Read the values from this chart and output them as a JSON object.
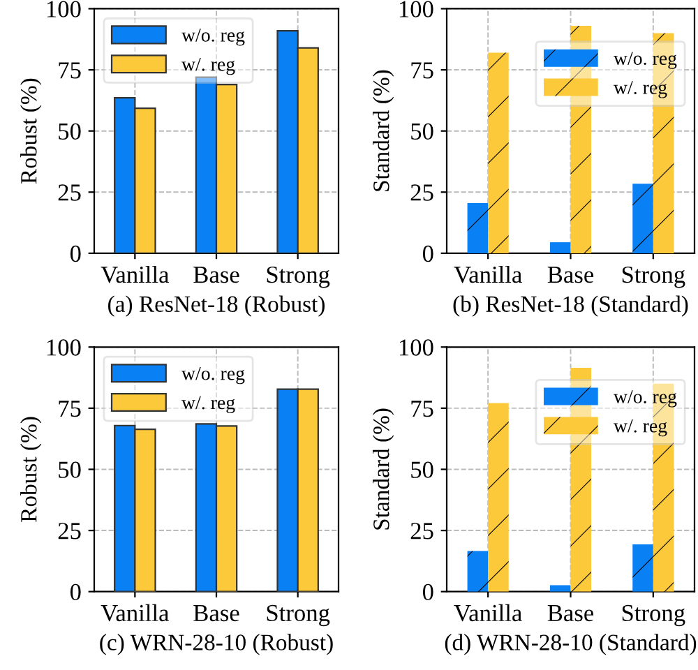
{
  "chart_data": [
    {
      "type": "bar",
      "xlabel": "(a) ResNet-18 (Robust)",
      "ylabel": "Robust (%)",
      "categories": [
        "Vanilla",
        "Base",
        "Strong"
      ],
      "series": [
        {
          "name": "w/o. reg",
          "color": "#0a80f5",
          "values": [
            63.6,
            72,
            91
          ]
        },
        {
          "name": "w/. reg",
          "color": "#fcc93a",
          "values": [
            59.3,
            69,
            84
          ]
        }
      ],
      "ylim": [
        0,
        100
      ],
      "yticks": [
        0,
        25,
        50,
        75,
        100
      ],
      "grid": true,
      "legend": "top left"
    },
    {
      "type": "bar",
      "xlabel": "(b) ResNet-18 (Standard)",
      "ylabel": "Standard (%)",
      "categories": [
        "Vanilla",
        "Base",
        "Strong"
      ],
      "series": [
        {
          "name": "w/o. reg",
          "color": "#0a80f5",
          "values": [
            20.5,
            4.5,
            28.4
          ]
        },
        {
          "name": "w/. reg",
          "color": "#fcc93a",
          "values": [
            82,
            93,
            90
          ]
        }
      ],
      "ylim": [
        0,
        100
      ],
      "yticks": [
        0,
        25,
        50,
        75,
        100
      ],
      "grid": true,
      "legend": "top right"
    },
    {
      "type": "bar",
      "xlabel": "(c) WRN-28-10 (Robust)",
      "ylabel": "Robust (%)",
      "categories": [
        "Vanilla",
        "Base",
        "Strong"
      ],
      "series": [
        {
          "name": "w/o. reg",
          "color": "#0a80f5",
          "values": [
            67.9,
            68.6,
            82.8
          ]
        },
        {
          "name": "w/. reg",
          "color": "#fcc93a",
          "values": [
            66.4,
            67.7,
            82.8
          ]
        }
      ],
      "ylim": [
        0,
        100
      ],
      "yticks": [
        0,
        25,
        50,
        75,
        100
      ],
      "grid": true,
      "legend": "top left"
    },
    {
      "type": "bar",
      "xlabel": "(d) WRN-28-10 (Standard)",
      "ylabel": "Standard (%)",
      "categories": [
        "Vanilla",
        "Base",
        "Strong"
      ],
      "series": [
        {
          "name": "w/o. reg",
          "color": "#0a80f5",
          "values": [
            16.6,
            2.6,
            19.3
          ]
        },
        {
          "name": "w/. reg",
          "color": "#fcc93a",
          "values": [
            77.1,
            91.5,
            85
          ]
        }
      ],
      "ylim": [
        0,
        100
      ],
      "yticks": [
        0,
        25,
        50,
        75,
        100
      ],
      "grid": true,
      "legend": "top right"
    }
  ]
}
